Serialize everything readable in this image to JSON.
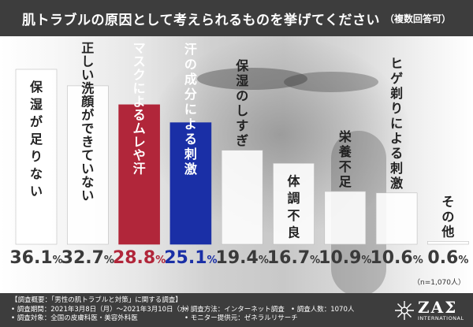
{
  "header": {
    "title": "肌トラブルの原因として考えられるものを挙げてください",
    "subtitle": "（複数回答可）"
  },
  "chart_data": {
    "type": "bar",
    "categories": [
      "保湿が足りない",
      "正しい洗顔ができていない",
      "マスクによるムレや汗",
      "汗の成分による刺激",
      "保湿のしすぎ",
      "体調不良",
      "栄養不足",
      "ヒゲ剃りによる刺激",
      "その他"
    ],
    "values": [
      36.1,
      32.7,
      28.8,
      25.1,
      19.4,
      16.7,
      10.9,
      10.6,
      0.6
    ],
    "value_labels": [
      "36.1",
      "32.7",
      "28.8",
      "25.1",
      "19.4",
      "16.7",
      "10.9",
      "10.6",
      "0.6"
    ],
    "unit": "%",
    "highlight": [
      {
        "index": 2,
        "color": "#b1263a"
      },
      {
        "index": 3,
        "color": "#1a2fa6"
      }
    ],
    "default_color": "#ffffff",
    "default_text_color": "#222222",
    "ylim": [
      0,
      40
    ],
    "grid": false,
    "title": "肌トラブルの原因として考えられるものを挙げてください（複数回答可）",
    "xlabel": "",
    "ylabel": ""
  },
  "note": "（n=1,070人）",
  "footer": {
    "overview": "【調査概要：「男性の肌トラブルと対策」に関する調査】",
    "period": "• 調査期間：2021年3月8日（月）〜2021年3月10日（水）",
    "method": "• 調査方法：インターネット調査",
    "count": "• 調査人数：1070人",
    "target": "• 調査対象：全国の皮膚科医・美容外科医",
    "provider": "• モニター提供元：ゼネラルリサーチ"
  },
  "logo": {
    "name": "ZAΣ",
    "sub": "INTERNATIONAL"
  }
}
